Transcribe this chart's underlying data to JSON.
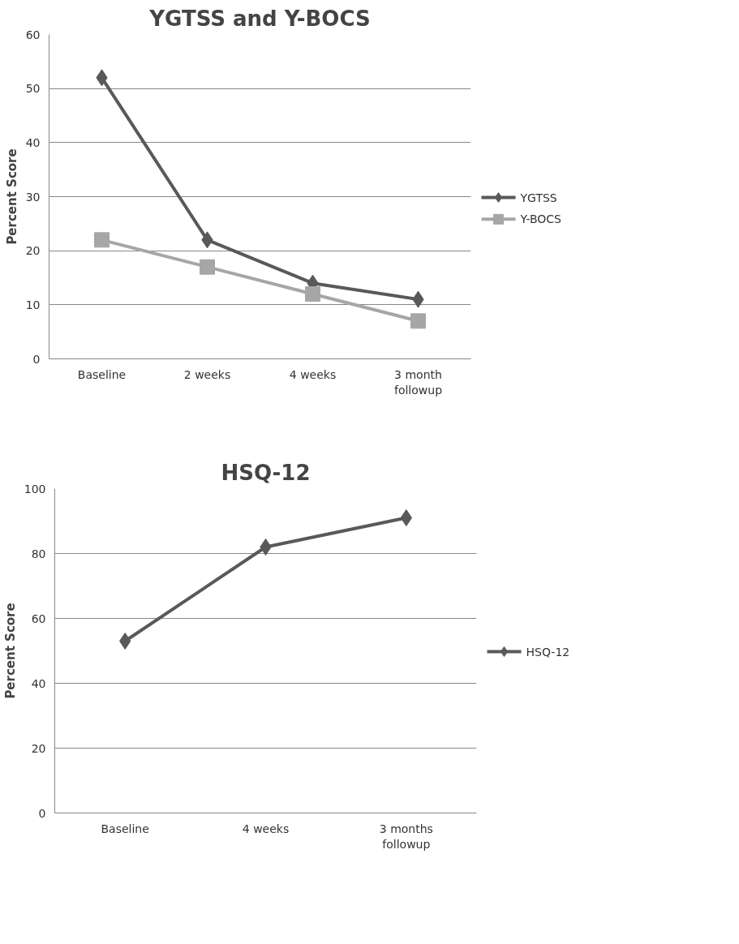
{
  "chart_data": [
    {
      "type": "line",
      "title": "YGTSS and Y-BOCS",
      "ylabel": "Percent Score",
      "categories": [
        "Baseline",
        "2 weeks",
        "4 weeks",
        "3 month\nfollowup"
      ],
      "ylim": [
        0,
        60
      ],
      "yticks": [
        0,
        10,
        20,
        30,
        40,
        50,
        60
      ],
      "grid": "y",
      "legend": "right",
      "series": [
        {
          "name": "YGTSS",
          "color": "#595959",
          "marker": "diamond",
          "values": [
            52,
            22,
            14,
            11
          ]
        },
        {
          "name": "Y-BOCS",
          "color": "#a6a6a6",
          "marker": "square",
          "values": [
            22,
            17,
            12,
            7
          ]
        }
      ]
    },
    {
      "type": "line",
      "title": "HSQ-12",
      "ylabel": "Percent Score",
      "categories": [
        "Baseline",
        "4 weeks",
        "3 months\nfollowup"
      ],
      "ylim": [
        0,
        100
      ],
      "yticks": [
        0,
        20,
        40,
        60,
        80,
        100
      ],
      "grid": "y",
      "legend": "right",
      "marker": "diamond",
      "series": [
        {
          "name": "HSQ-12",
          "color": "#595959",
          "values": [
            53,
            82,
            91
          ]
        }
      ]
    }
  ]
}
